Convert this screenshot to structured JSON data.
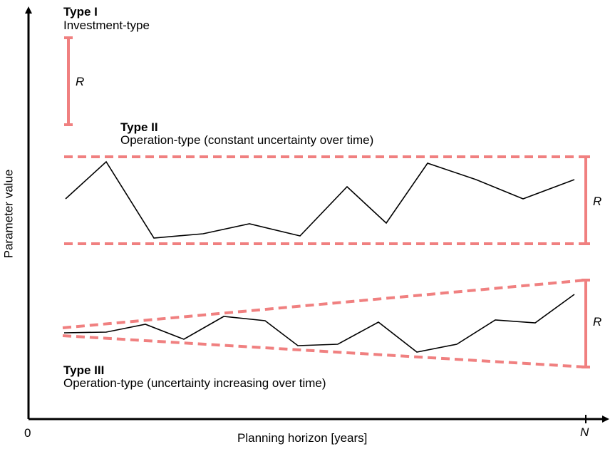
{
  "axes": {
    "x_label": "Planning horizon [years]",
    "y_label": "Parameter value",
    "x_origin_tick": "0",
    "x_end_tick": "N"
  },
  "type1": {
    "title": "Type I",
    "subtitle": "Investment-type",
    "range_label": "R"
  },
  "type2": {
    "title": "Type II",
    "subtitle": "Operation-type (constant uncertainty over time)",
    "range_label": "R"
  },
  "type3": {
    "title": "Type III",
    "subtitle": "Operation-type (uncertainty increasing over time)",
    "range_label": "R"
  },
  "colors": {
    "band": "#f08080",
    "line": "#000000",
    "axis": "#000000"
  }
}
